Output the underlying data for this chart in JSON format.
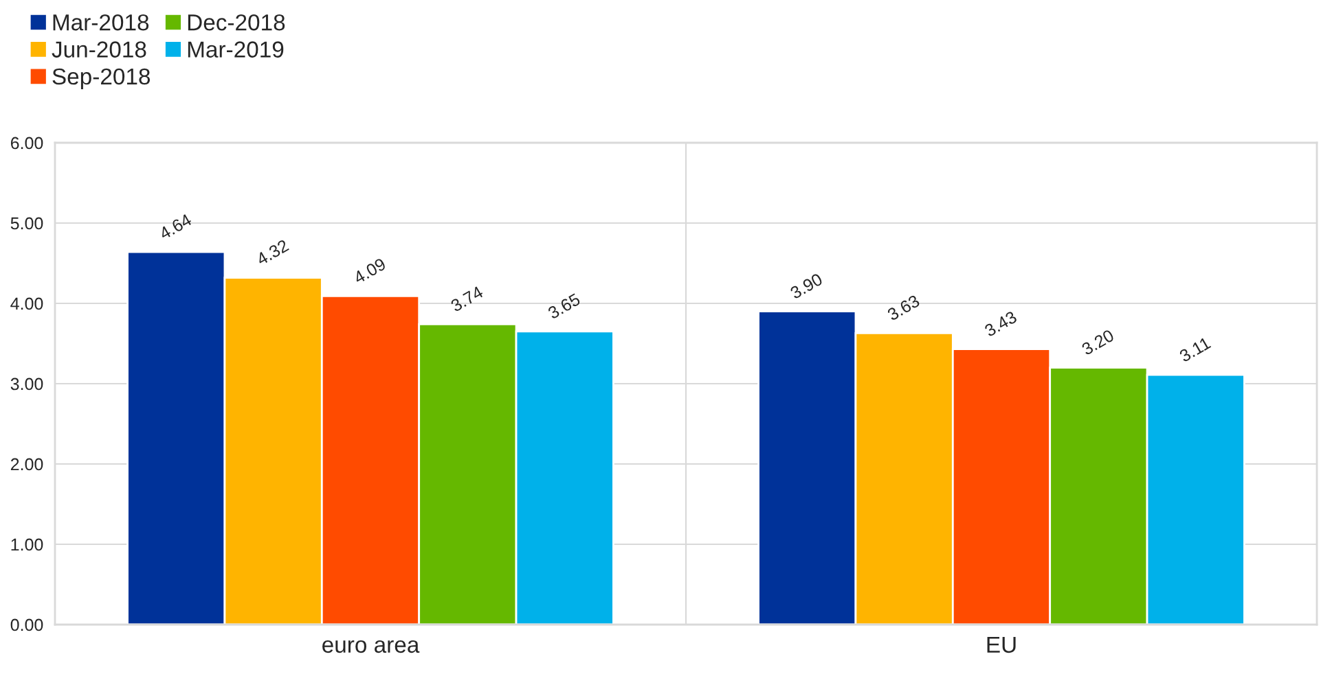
{
  "chart_data": {
    "type": "bar",
    "categories": [
      "euro area",
      "EU"
    ],
    "series": [
      {
        "name": "Mar-2018",
        "color": "#003299",
        "values": [
          4.64,
          3.9
        ],
        "value_labels": [
          "4.64",
          "3.90"
        ]
      },
      {
        "name": "Jun-2018",
        "color": "#ffb400",
        "values": [
          4.32,
          3.63
        ],
        "value_labels": [
          "4.32",
          "3.63"
        ]
      },
      {
        "name": "Sep-2018",
        "color": "#ff4b00",
        "values": [
          4.09,
          3.43
        ],
        "value_labels": [
          "4.09",
          "3.43"
        ]
      },
      {
        "name": "Dec-2018",
        "color": "#65b800",
        "values": [
          3.74,
          3.2
        ],
        "value_labels": [
          "3.74",
          "3.20"
        ]
      },
      {
        "name": "Mar-2019",
        "color": "#00b1ea",
        "values": [
          3.65,
          3.11
        ],
        "value_labels": [
          "3.65",
          "3.11"
        ]
      }
    ],
    "ylim": [
      0,
      6
    ],
    "yticks": [
      {
        "value": 0,
        "label": "0.00"
      },
      {
        "value": 1,
        "label": "1.00"
      },
      {
        "value": 2,
        "label": "2.00"
      },
      {
        "value": 3,
        "label": "3.00"
      },
      {
        "value": 4,
        "label": "4.00"
      },
      {
        "value": 5,
        "label": "5.00"
      },
      {
        "value": 6,
        "label": "6.00"
      }
    ],
    "grid": true,
    "legend": "top left"
  }
}
